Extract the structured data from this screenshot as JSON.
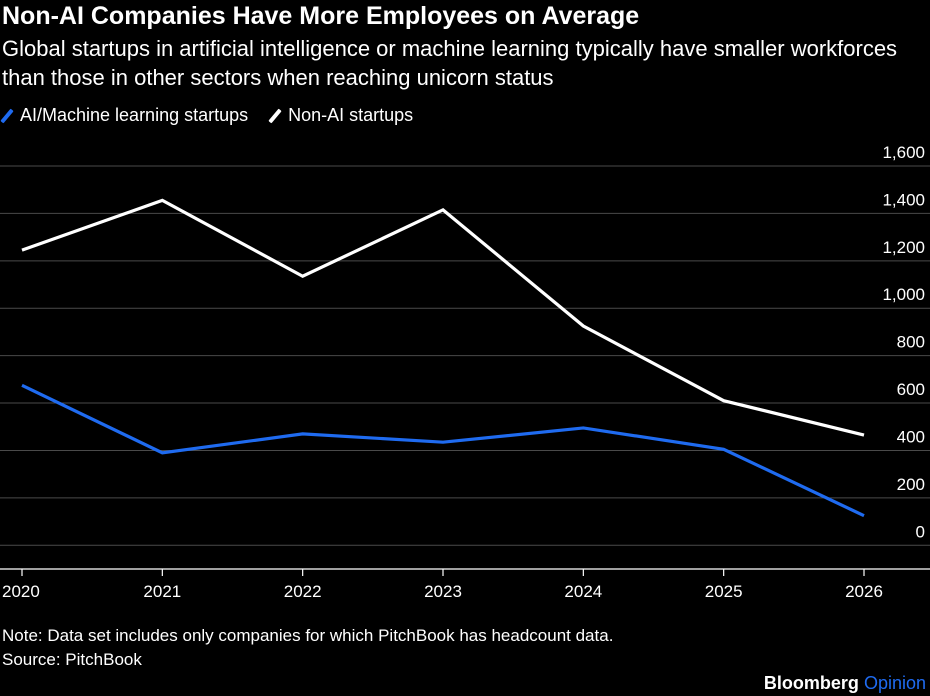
{
  "header": {
    "title": "Non-AI Companies Have More Employees on Average",
    "subtitle": "Global startups in artificial intelligence or machine learning typically have smaller workforces than those in other sectors when reaching unicorn status"
  },
  "legend": [
    {
      "label": "AI/Machine learning startups",
      "color": "#1f6bf0"
    },
    {
      "label": "Non-AI startups",
      "color": "#ffffff"
    }
  ],
  "footer": {
    "note": "Note: Data set includes only companies for which PitchBook has headcount data.",
    "source": "Source: PitchBook",
    "brand_main": "Bloomberg",
    "brand_sub": "Opinion"
  },
  "chart_data": {
    "type": "line",
    "title": "Non-AI Companies Have More Employees on Average",
    "x": [
      "2020",
      "2021",
      "2022",
      "2023",
      "2024",
      "2025",
      "2026"
    ],
    "series": [
      {
        "name": "AI/Machine learning startups",
        "color": "#1f6bf0",
        "values": [
          675,
          390,
          470,
          435,
          495,
          405,
          125
        ]
      },
      {
        "name": "Non-AI startups",
        "color": "#ffffff",
        "values": [
          1245,
          1455,
          1135,
          1415,
          925,
          610,
          465
        ]
      }
    ],
    "yticks": [
      0,
      200,
      400,
      600,
      800,
      1000,
      1200,
      1400,
      1600
    ],
    "ytick_labels": [
      "0",
      "200",
      "400",
      "600",
      "800",
      "1,000",
      "1,200",
      "1,400",
      "1,600"
    ],
    "ylim": [
      -100,
      1600
    ],
    "grid": true,
    "y_axis_side": "right",
    "legend_position": "top-left"
  }
}
